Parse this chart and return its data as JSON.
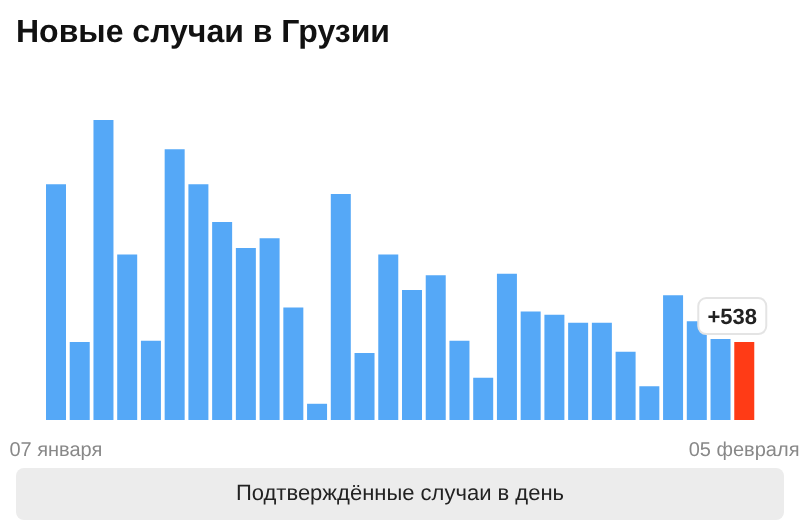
{
  "chart_data": {
    "type": "bar",
    "title": "Новые случаи в Грузии",
    "categories": [
      "07 января",
      null,
      null,
      null,
      null,
      null,
      null,
      null,
      null,
      null,
      null,
      null,
      null,
      null,
      null,
      null,
      null,
      null,
      null,
      null,
      null,
      null,
      null,
      null,
      null,
      null,
      null,
      null,
      null,
      "05 февраля"
    ],
    "values": [
      1627,
      538,
      2071,
      1143,
      547,
      1869,
      1627,
      1367,
      1188,
      1255,
      776,
      112,
      1560,
      462,
      1143,
      897,
      1000,
      547,
      291,
      1009,
      749,
      726,
      672,
      672,
      471,
      233,
      861,
      681,
      560,
      538
    ],
    "colors": [
      "#55a8f7",
      "#55a8f7",
      "#55a8f7",
      "#55a8f7",
      "#55a8f7",
      "#55a8f7",
      "#55a8f7",
      "#55a8f7",
      "#55a8f7",
      "#55a8f7",
      "#55a8f7",
      "#55a8f7",
      "#55a8f7",
      "#55a8f7",
      "#55a8f7",
      "#55a8f7",
      "#55a8f7",
      "#55a8f7",
      "#55a8f7",
      "#55a8f7",
      "#55a8f7",
      "#55a8f7",
      "#55a8f7",
      "#55a8f7",
      "#55a8f7",
      "#55a8f7",
      "#55a8f7",
      "#55a8f7",
      "#55a8f7",
      "#ff3b16"
    ],
    "value_labels": [
      null,
      null,
      null,
      null,
      null,
      null,
      null,
      null,
      null,
      null,
      null,
      null,
      null,
      null,
      null,
      null,
      null,
      null,
      null,
      null,
      null,
      null,
      null,
      null,
      null,
      null,
      null,
      null,
      null,
      "+538"
    ],
    "annotations": [
      "Подтверждённые случаи в день"
    ]
  }
}
